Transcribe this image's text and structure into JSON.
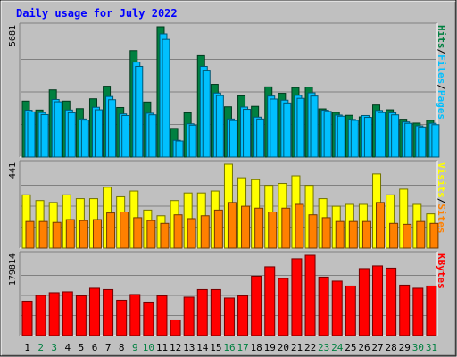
{
  "chart_data": {
    "type": "bar",
    "title": "Daily usage for July 2022",
    "categories": [
      "1",
      "2",
      "3",
      "4",
      "5",
      "6",
      "7",
      "8",
      "9",
      "10",
      "11",
      "12",
      "13",
      "14",
      "15",
      "16",
      "17",
      "18",
      "19",
      "20",
      "21",
      "22",
      "23",
      "24",
      "25",
      "26",
      "27",
      "28",
      "29",
      "30",
      "31"
    ],
    "weekend_days": [
      "2",
      "3",
      "9",
      "10",
      "16",
      "17",
      "23",
      "24",
      "30",
      "31"
    ],
    "panels": [
      {
        "id": "hits",
        "max_label": "5681",
        "ylim": [
          0,
          5681
        ],
        "legend": [
          "Pages",
          "Files",
          "Hits"
        ],
        "series": [
          {
            "name": "Hits",
            "color": "#008040",
            "values": [
              2440,
              2050,
              2930,
              2440,
              2110,
              2540,
              3090,
              2160,
              4640,
              2400,
              5681,
              1250,
              1930,
              4420,
              3170,
              2190,
              2670,
              2210,
              3060,
              2780,
              3030,
              3050,
              2100,
              1950,
              1820,
              1750,
              2270,
              2060,
              1650,
              1480,
              1600
            ]
          },
          {
            "name": "Files",
            "color": "#00c0ff",
            "values": [
              2040,
              1940,
              2510,
              2050,
              1660,
              2170,
              2640,
              1880,
              4140,
              1910,
              5370,
              730,
              1450,
              3950,
              2790,
              1660,
              2180,
              1740,
              2660,
              2480,
              2690,
              2800,
              2040,
              1830,
              1640,
              1810,
              2030,
              1930,
              1530,
              1360,
              1470
            ]
          },
          {
            "name": "Pages",
            "color": "#00c0ff",
            "values": [
              1970,
              1850,
              2410,
              1930,
              1610,
              2060,
              2500,
              1810,
              3950,
              1840,
              5130,
              700,
              1390,
              3790,
              2680,
              1590,
              2080,
              1660,
              2530,
              2360,
              2560,
              2660,
              1990,
              1780,
              1600,
              1730,
              1940,
              1840,
              1470,
              1310,
              1410
            ]
          }
        ]
      },
      {
        "id": "visits",
        "max_label": "441",
        "ylim": [
          0,
          441
        ],
        "legend": [
          "Sites",
          "Visits"
        ],
        "series": [
          {
            "name": "Visits",
            "color": "#ffff00",
            "values": [
              280,
              250,
              240,
              280,
              260,
              260,
              320,
              270,
              300,
              200,
              170,
              250,
              290,
              290,
              300,
              441,
              370,
              360,
              330,
              340,
              380,
              330,
              260,
              220,
              230,
              230,
              390,
              280,
              310,
              230,
              180
            ]
          },
          {
            "name": "Sites",
            "color": "#ff8000",
            "values": [
              140,
              140,
              135,
              150,
              145,
              150,
              185,
              190,
              160,
              145,
              130,
              175,
              155,
              170,
              200,
              240,
              220,
              210,
              190,
              210,
              230,
              175,
              160,
              140,
              140,
              140,
              240,
              130,
              125,
              140,
              130
            ]
          }
        ]
      },
      {
        "id": "kbytes",
        "max_label": "179814",
        "ylim": [
          0,
          179814
        ],
        "legend": [
          "KBytes"
        ],
        "series": [
          {
            "name": "KBytes",
            "color": "#ff0000",
            "values": [
              77000,
              90000,
              96000,
              98000,
              89000,
              106000,
              103000,
              79000,
              92000,
              75000,
              89000,
              35000,
              86000,
              103000,
              103000,
              84000,
              89000,
              133000,
              154000,
              128000,
              172000,
              179814,
              131000,
              122000,
              111000,
              150000,
              156000,
              151000,
              113000,
              106000,
              111000
            ]
          }
        ]
      }
    ]
  }
}
